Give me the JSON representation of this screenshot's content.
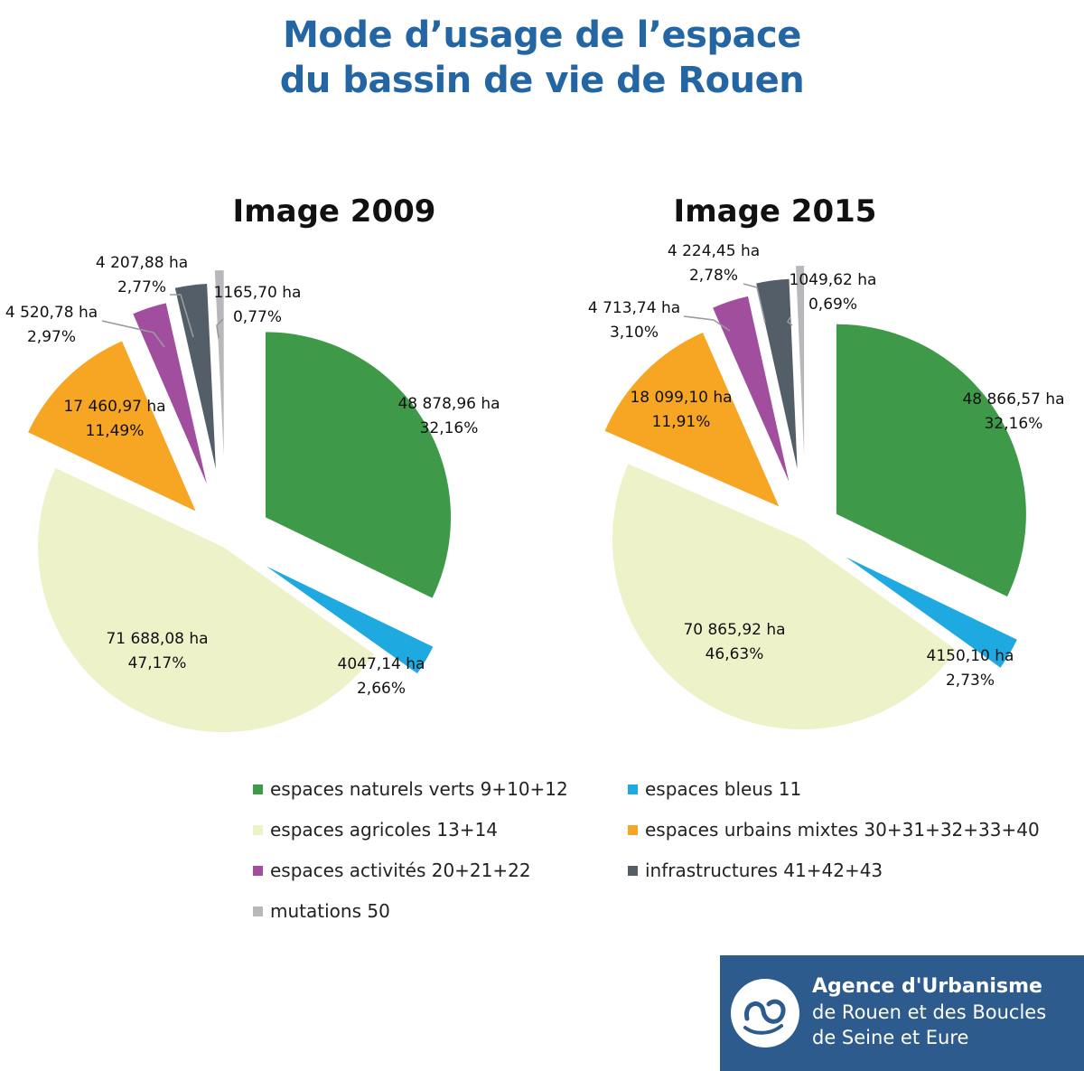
{
  "title": {
    "line1": "Mode d’usage de l’espace",
    "line2": "du bassin de vie de Rouen"
  },
  "legend": [
    {
      "label": "espaces naturels verts 9+10+12",
      "color": "#3e9a48"
    },
    {
      "label": "espaces bleus 11",
      "color": "#1ea9e1"
    },
    {
      "label": "espaces agricoles 13+14",
      "color": "#eef2c8"
    },
    {
      "label": "espaces urbains mixtes 30+31+32+33+40",
      "color": "#f6a623"
    },
    {
      "label": "espaces activités 20+21+22",
      "color": "#a24e9f"
    },
    {
      "label": "infrastructures   41+42+43",
      "color": "#545e69"
    },
    {
      "label": "mutations  50",
      "color": "#b7b8bc"
    }
  ],
  "chart_data": [
    {
      "type": "pie",
      "title": "Image 2009",
      "unit": "ha",
      "categories": [
        "espaces naturels verts 9+10+12",
        "espaces bleus 11",
        "espaces agricoles 13+14",
        "espaces urbains mixtes 30+31+32+33+40",
        "espaces activités 20+21+22",
        "infrastructures   41+42+43",
        "mutations  50"
      ],
      "values": [
        48878.96,
        4047.14,
        71688.08,
        17460.97,
        4520.78,
        4207.88,
        1165.7
      ],
      "percentages": [
        32.16,
        2.66,
        47.17,
        11.49,
        2.97,
        2.77,
        0.77
      ],
      "value_labels": [
        "48 878,96 ha",
        "4047,14 ha",
        "71 688,08 ha",
        "17 460,97 ha",
        "4 520,78 ha",
        "4 207,88 ha",
        "1165,70 ha"
      ],
      "percent_labels": [
        "32,16%",
        "2,66%",
        "47,17%",
        "11,49%",
        "2,97%",
        "2,77%",
        "0,77%"
      ],
      "colors": [
        "#3e9a48",
        "#1ea9e1",
        "#eef2c8",
        "#f6a623",
        "#a24e9f",
        "#545e69",
        "#b7b8bc"
      ],
      "exploded": true
    },
    {
      "type": "pie",
      "title": "Image 2015",
      "unit": "ha",
      "categories": [
        "espaces naturels verts 9+10+12",
        "espaces bleus 11",
        "espaces agricoles 13+14",
        "espaces urbains mixtes 30+31+32+33+40",
        "espaces activités 20+21+22",
        "infrastructures   41+42+43",
        "mutations  50"
      ],
      "values": [
        48866.57,
        4150.1,
        70865.92,
        18099.1,
        4713.74,
        4224.45,
        1049.62
      ],
      "percentages": [
        32.16,
        2.73,
        46.63,
        11.91,
        3.1,
        2.78,
        0.69
      ],
      "value_labels": [
        "48 866,57 ha",
        "4150,10 ha",
        "70 865,92 ha",
        "18 099,10 ha",
        "4 713,74 ha",
        "4 224,45 ha",
        "1049,62 ha"
      ],
      "percent_labels": [
        "32,16%",
        "2,73%",
        "46,63%",
        "11,91%",
        "3,10%",
        "2,78%",
        "0,69%"
      ],
      "colors": [
        "#3e9a48",
        "#1ea9e1",
        "#eef2c8",
        "#f6a623",
        "#a24e9f",
        "#545e69",
        "#b7b8bc"
      ],
      "exploded": true
    }
  ],
  "logo": {
    "line1": "Agence d'Urbanisme",
    "line2": "de Rouen et des Boucles",
    "line3": "de Seine et Eure"
  }
}
